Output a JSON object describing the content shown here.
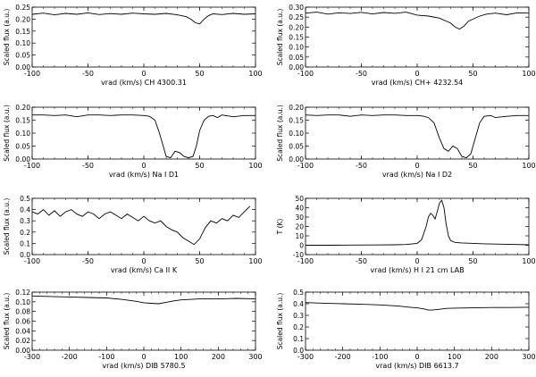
{
  "chart_data": [
    {
      "type": "line",
      "xlabel": "vrad (km/s) CH 4300.31",
      "ylabel": "Scaled flux (a.u.)",
      "xlim": [
        -100,
        100
      ],
      "ylim": [
        0,
        0.25
      ],
      "xticks": [
        -100,
        -50,
        0,
        50,
        100
      ],
      "yticks": [
        "0.00",
        "0.05",
        "0.10",
        "0.15",
        "0.20",
        "0.25"
      ],
      "x": [
        -100,
        -90,
        -80,
        -70,
        -60,
        -50,
        -40,
        -30,
        -20,
        -10,
        0,
        10,
        20,
        30,
        38,
        42,
        46,
        50,
        54,
        58,
        62,
        70,
        80,
        90,
        100
      ],
      "values": [
        0.22,
        0.225,
        0.218,
        0.224,
        0.22,
        0.226,
        0.219,
        0.223,
        0.22,
        0.225,
        0.222,
        0.22,
        0.224,
        0.218,
        0.21,
        0.2,
        0.185,
        0.18,
        0.2,
        0.215,
        0.222,
        0.219,
        0.224,
        0.22,
        0.222
      ]
    },
    {
      "type": "line",
      "xlabel": "vrad (km/s) CH+ 4232.54",
      "ylabel": "Scaled flux (a.u.)",
      "xlim": [
        -100,
        100
      ],
      "ylim": [
        0,
        0.3
      ],
      "xticks": [
        -100,
        -50,
        0,
        50,
        100
      ],
      "yticks": [
        "0.00",
        "0.05",
        "0.10",
        "0.15",
        "0.20",
        "0.25",
        "0.30"
      ],
      "x": [
        -100,
        -90,
        -80,
        -70,
        -60,
        -50,
        -40,
        -30,
        -20,
        -10,
        0,
        10,
        20,
        26,
        30,
        34,
        38,
        42,
        46,
        50,
        56,
        62,
        70,
        80,
        90,
        100
      ],
      "values": [
        0.27,
        0.275,
        0.265,
        0.272,
        0.268,
        0.274,
        0.266,
        0.273,
        0.269,
        0.275,
        0.26,
        0.255,
        0.245,
        0.23,
        0.22,
        0.2,
        0.19,
        0.205,
        0.23,
        0.24,
        0.255,
        0.265,
        0.27,
        0.262,
        0.272,
        0.27
      ]
    },
    {
      "type": "line",
      "xlabel": "vrad (km/s) Na I D1",
      "ylabel": "Scaled flux (a.u.)",
      "xlim": [
        -100,
        100
      ],
      "ylim": [
        0,
        0.2
      ],
      "xticks": [
        -100,
        -50,
        0,
        50,
        100
      ],
      "yticks": [
        "0.00",
        "0.05",
        "0.10",
        "0.15",
        "0.20"
      ],
      "x": [
        -100,
        -90,
        -80,
        -70,
        -60,
        -50,
        -40,
        -30,
        -20,
        -10,
        0,
        5,
        10,
        14,
        18,
        20,
        24,
        28,
        32,
        36,
        40,
        44,
        47,
        50,
        54,
        58,
        62,
        66,
        70,
        80,
        90,
        100
      ],
      "values": [
        0.17,
        0.17,
        0.168,
        0.17,
        0.163,
        0.17,
        0.17,
        0.168,
        0.17,
        0.17,
        0.168,
        0.165,
        0.15,
        0.1,
        0.04,
        0.01,
        0.005,
        0.03,
        0.025,
        0.01,
        0.005,
        0.01,
        0.05,
        0.11,
        0.15,
        0.165,
        0.168,
        0.16,
        0.17,
        0.163,
        0.168,
        0.168
      ]
    },
    {
      "type": "line",
      "xlabel": "vrad (km/s) Na I D2",
      "ylabel": "Scaled flux (a.u.)",
      "xlim": [
        -100,
        100
      ],
      "ylim": [
        0,
        0.2
      ],
      "xticks": [
        -100,
        -50,
        0,
        50,
        100
      ],
      "yticks": [
        "0.00",
        "0.05",
        "0.10",
        "0.15",
        "0.20"
      ],
      "x": [
        -100,
        -90,
        -80,
        -70,
        -60,
        -50,
        -40,
        -30,
        -20,
        -10,
        0,
        5,
        10,
        15,
        20,
        24,
        28,
        32,
        36,
        40,
        44,
        48,
        52,
        56,
        60,
        66,
        70,
        80,
        90,
        100
      ],
      "values": [
        0.17,
        0.168,
        0.17,
        0.17,
        0.165,
        0.17,
        0.168,
        0.17,
        0.17,
        0.168,
        0.168,
        0.166,
        0.16,
        0.14,
        0.08,
        0.04,
        0.03,
        0.05,
        0.04,
        0.01,
        0.005,
        0.02,
        0.08,
        0.14,
        0.165,
        0.168,
        0.16,
        0.165,
        0.168,
        0.168
      ]
    },
    {
      "type": "line",
      "xlabel": "vrad (km/s) Ca II K",
      "ylabel": "Scaled flux (a.u.)",
      "xlim": [
        -100,
        100
      ],
      "ylim": [
        0,
        0.5
      ],
      "xticks": [
        -100,
        -50,
        0,
        50,
        100
      ],
      "yticks": [
        "0.0",
        "0.1",
        "0.2",
        "0.3",
        "0.4",
        "0.5"
      ],
      "x": [
        -100,
        -95,
        -90,
        -85,
        -80,
        -75,
        -70,
        -65,
        -60,
        -55,
        -50,
        -45,
        -40,
        -35,
        -30,
        -25,
        -20,
        -15,
        -10,
        -5,
        0,
        5,
        10,
        15,
        20,
        25,
        30,
        35,
        40,
        45,
        50,
        55,
        60,
        65,
        70,
        75,
        80,
        85,
        90,
        95
      ],
      "values": [
        0.38,
        0.36,
        0.4,
        0.35,
        0.39,
        0.34,
        0.38,
        0.4,
        0.36,
        0.34,
        0.38,
        0.36,
        0.32,
        0.36,
        0.38,
        0.35,
        0.32,
        0.36,
        0.33,
        0.3,
        0.34,
        0.3,
        0.28,
        0.3,
        0.25,
        0.22,
        0.2,
        0.15,
        0.12,
        0.09,
        0.14,
        0.24,
        0.3,
        0.28,
        0.32,
        0.3,
        0.35,
        0.33,
        0.38,
        0.43
      ]
    },
    {
      "type": "line",
      "xlabel": "vrad (km/s)  H I 21 cm LAB",
      "ylabel": "T (K)",
      "xlim": [
        -100,
        100
      ],
      "ylim": [
        -10,
        50
      ],
      "xticks": [
        -100,
        -50,
        0,
        50,
        100
      ],
      "yticks": [
        "-10",
        "0",
        "10",
        "20",
        "30",
        "40",
        "50"
      ],
      "x": [
        -100,
        -80,
        -60,
        -40,
        -20,
        -10,
        0,
        4,
        8,
        10,
        12,
        14,
        16,
        18,
        20,
        22,
        24,
        26,
        28,
        30,
        34,
        40,
        50,
        60,
        80,
        100
      ],
      "values": [
        0,
        0,
        0.2,
        0.3,
        0.5,
        0.8,
        2,
        6,
        20,
        30,
        34,
        32,
        28,
        36,
        45,
        48,
        40,
        22,
        10,
        5,
        3,
        2.5,
        2,
        1.5,
        1,
        0.5
      ]
    },
    {
      "type": "line",
      "xlabel": "vrad (km/s) DIB 5780.5",
      "ylabel": "Scaled flux (a.u.)",
      "xlim": [
        -300,
        300
      ],
      "ylim": [
        0,
        0.12
      ],
      "xticks": [
        -300,
        -200,
        -100,
        0,
        100,
        200,
        300
      ],
      "yticks": [
        "0.00",
        "0.02",
        "0.04",
        "0.06",
        "0.08",
        "0.10",
        "0.12"
      ],
      "x": [
        -300,
        -250,
        -200,
        -150,
        -100,
        -60,
        -20,
        0,
        20,
        40,
        60,
        80,
        100,
        150,
        200,
        250,
        300
      ],
      "values": [
        0.112,
        0.111,
        0.11,
        0.109,
        0.108,
        0.105,
        0.101,
        0.098,
        0.097,
        0.096,
        0.099,
        0.102,
        0.104,
        0.106,
        0.106,
        0.107,
        0.106
      ]
    },
    {
      "type": "line",
      "xlabel": "vrad (km/s) DIB 6613.7",
      "ylabel": "Scaled flux (a.u.)",
      "xlim": [
        -300,
        300
      ],
      "ylim": [
        0,
        0.5
      ],
      "xticks": [
        -300,
        -200,
        -100,
        0,
        100,
        200,
        300
      ],
      "yticks": [
        "0.0",
        "0.1",
        "0.2",
        "0.3",
        "0.4",
        "0.5"
      ],
      "x": [
        -300,
        -250,
        -200,
        -150,
        -100,
        -50,
        -20,
        0,
        20,
        30,
        40,
        60,
        80,
        100,
        150,
        200,
        250,
        300
      ],
      "values": [
        0.41,
        0.405,
        0.4,
        0.395,
        0.39,
        0.38,
        0.37,
        0.365,
        0.355,
        0.345,
        0.345,
        0.352,
        0.36,
        0.362,
        0.365,
        0.368,
        0.368,
        0.37
      ]
    }
  ]
}
